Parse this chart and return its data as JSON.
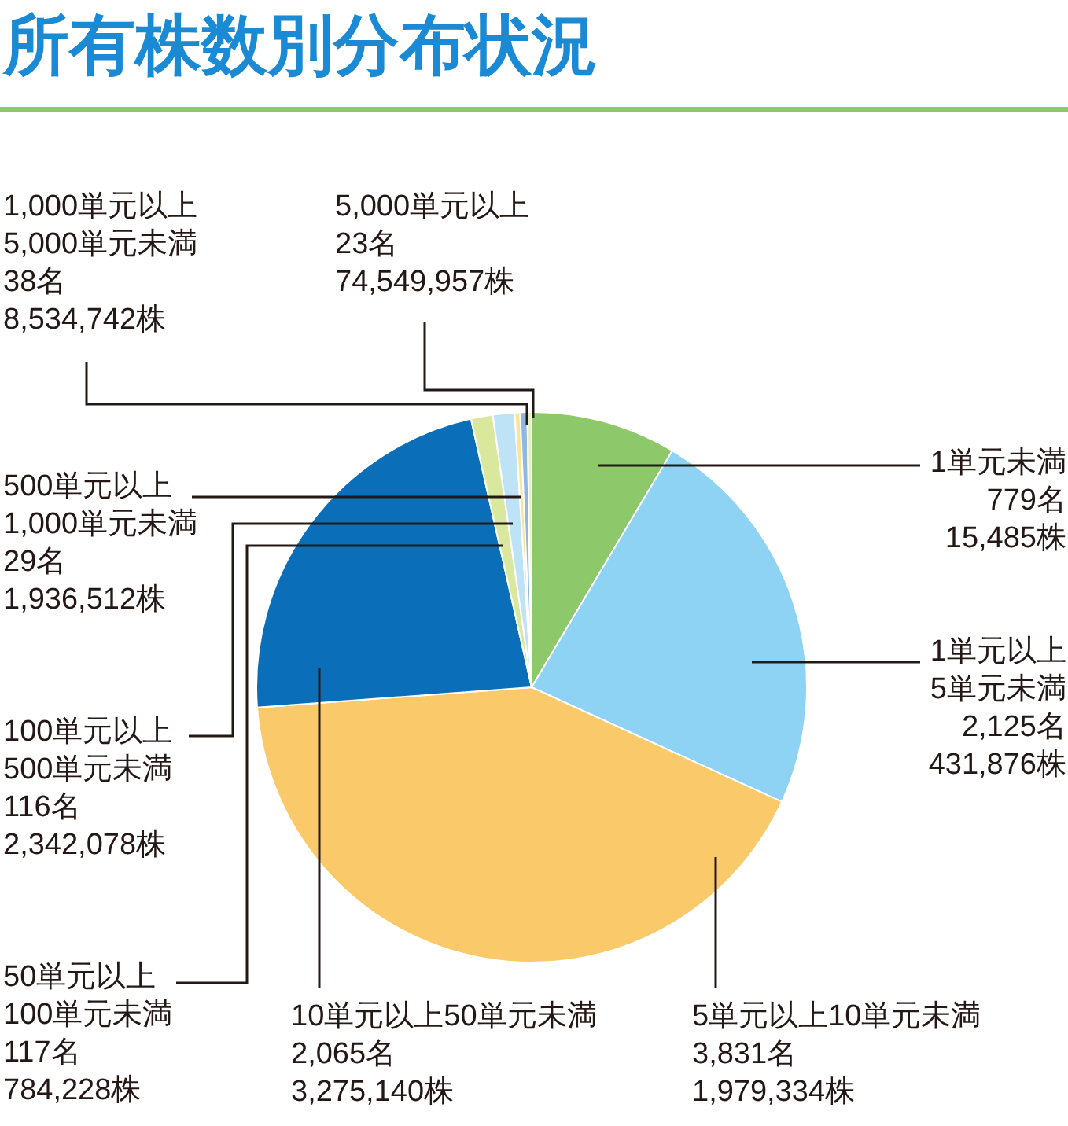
{
  "chart_data": {
    "type": "pie",
    "title": "所有株数別分布状況",
    "categories": [
      "1単元未満",
      "1単元以上\n5単元未満",
      "5単元以上10単元未満",
      "10単元以上50単元未満",
      "50単元以上\n100単元未満",
      "100単元以上\n500単元未満",
      "500単元以上\n1,000単元未満",
      "1,000単元以上\n5,000単元未満",
      "5,000単元以上"
    ],
    "values": [
      779,
      2125,
      3831,
      2065,
      117,
      116,
      29,
      38,
      23
    ],
    "value_labels": [
      "779名\n15,485株",
      "2,125名\n431,876株",
      "3,831名\n1,979,334株",
      "2,065名\n3,275,140株",
      "117名\n784,228株",
      "116名\n2,342,078株",
      "29名\n1,936,512株",
      "38名\n8,534,742株",
      "23名\n74,549,957株"
    ],
    "colors": [
      "#8dc86a",
      "#8fd3f4",
      "#f9c96a",
      "#0a6fb8",
      "#d9e89c",
      "#bfe3f6",
      "#fbe49a",
      "#8fb8e0",
      "#e5f0c8"
    ]
  }
}
